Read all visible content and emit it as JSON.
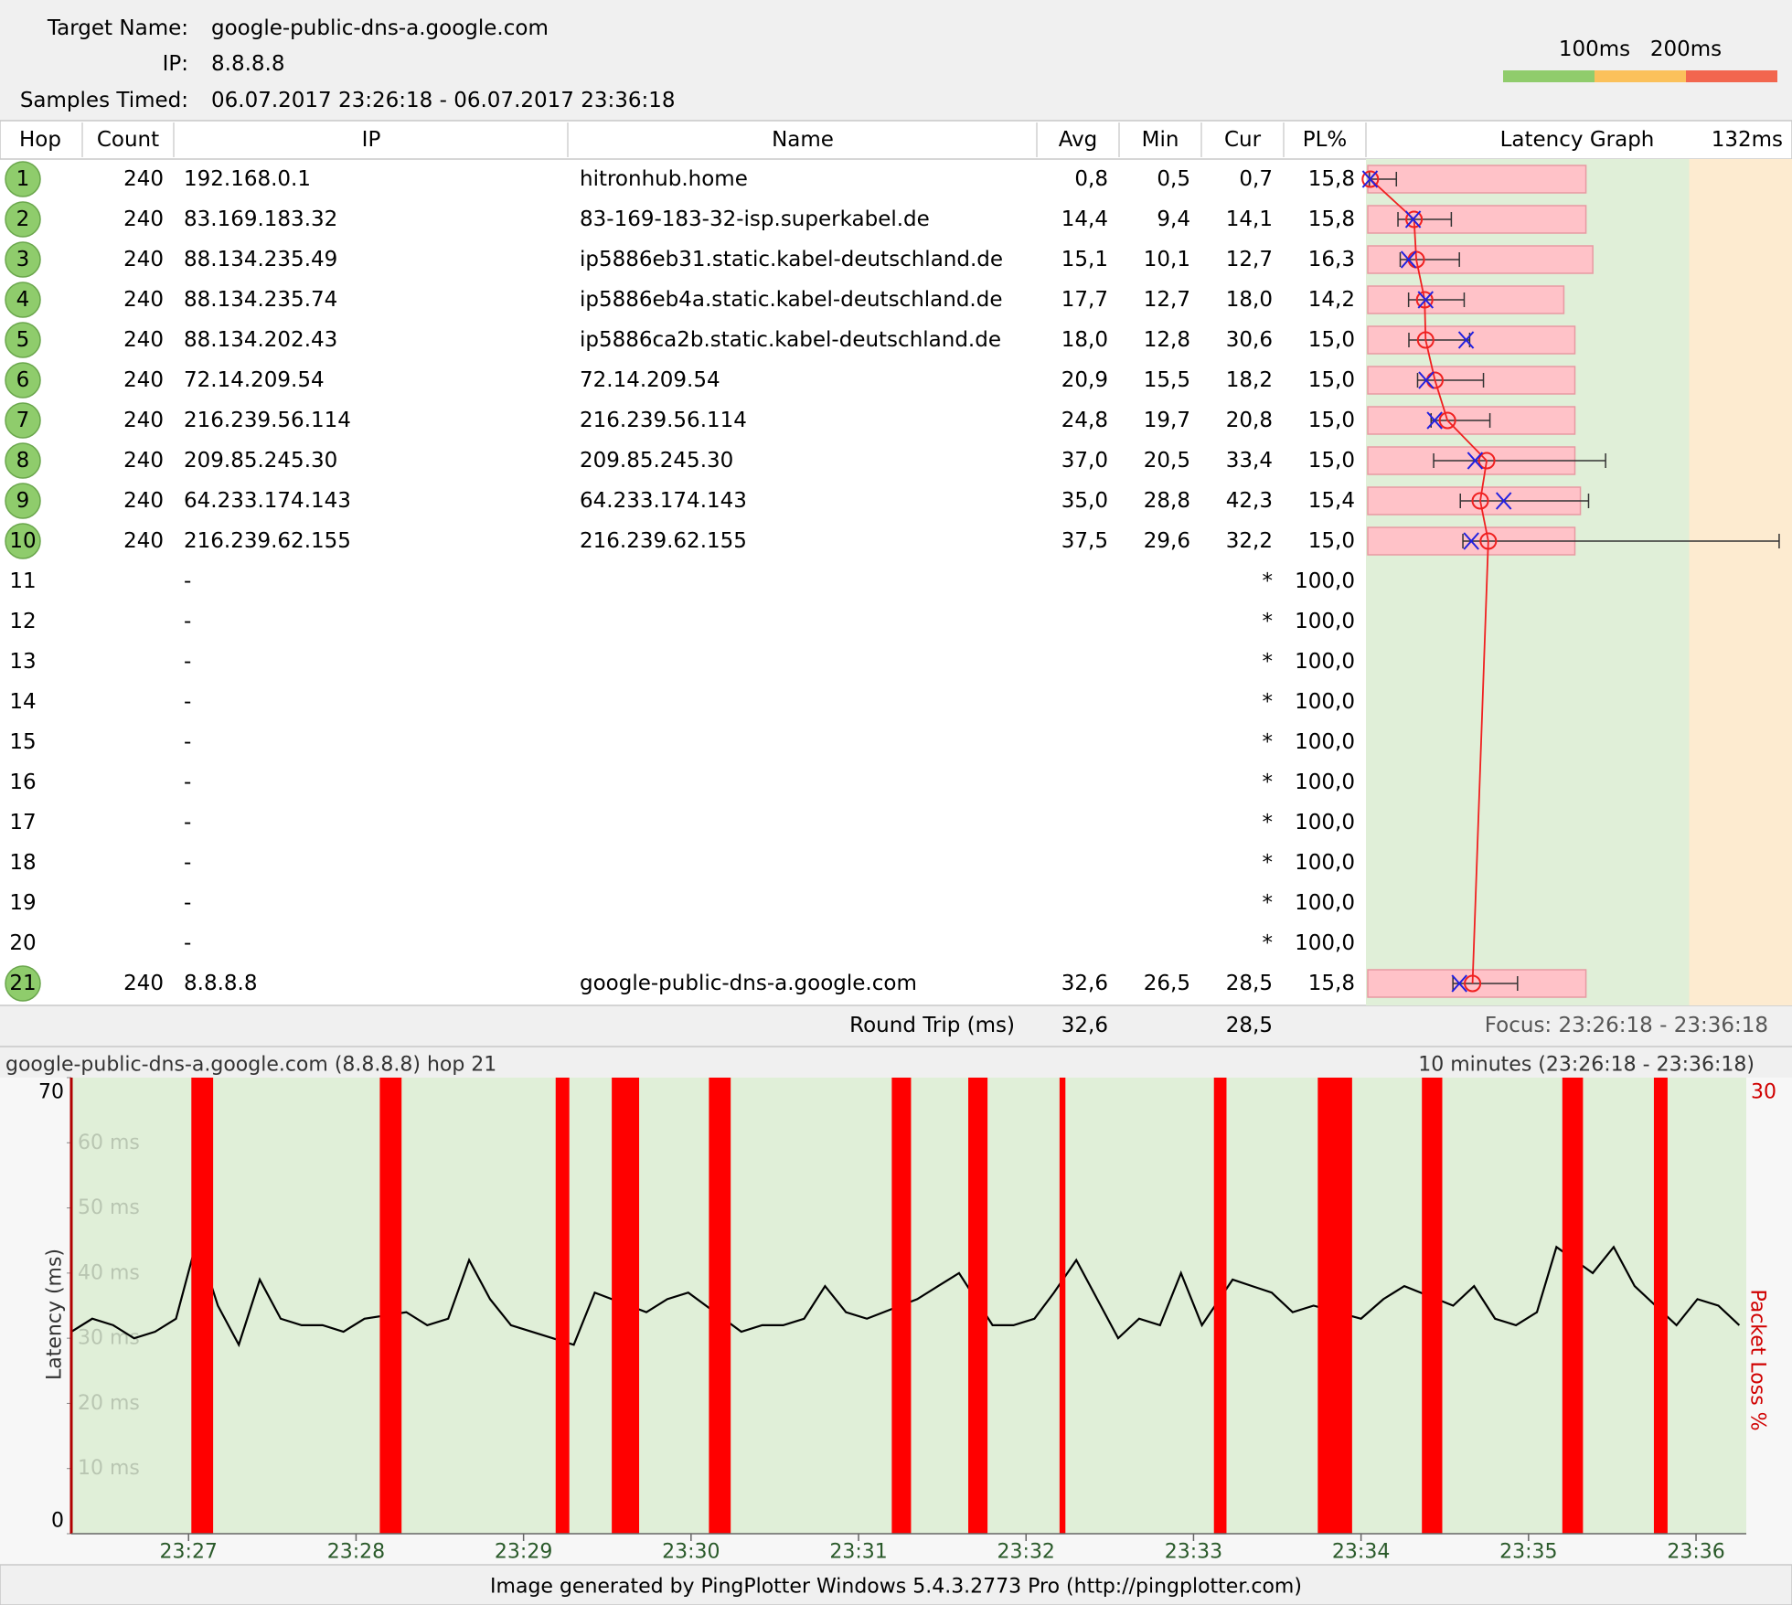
{
  "header": {
    "target_label": "Target Name:",
    "target": "google-public-dns-a.google.com",
    "ip_label": "IP:",
    "ip": "8.8.8.8",
    "samples_label": "Samples Timed:",
    "samples": "06.07.2017 23:26:18 - 06.07.2017 23:36:18"
  },
  "thresholds": [
    {
      "value": 100,
      "label": "100ms"
    },
    {
      "value": 200,
      "label": "200ms"
    }
  ],
  "threshold_colors": [
    "#90cc6c",
    "#fbc15b",
    "#f2664f"
  ],
  "table": {
    "columns": [
      "Hop",
      "Count",
      "IP",
      "Name",
      "Avg",
      "Min",
      "Cur",
      "PL%"
    ],
    "rows": [
      {
        "hop": 1,
        "count": 240,
        "ip": "192.168.0.1",
        "name": "hitronhub.home",
        "avg": "0,8",
        "min": "0,5",
        "cur": "0,7",
        "pl": "15,8"
      },
      {
        "hop": 2,
        "count": 240,
        "ip": "83.169.183.32",
        "name": "83-169-183-32-isp.superkabel.de",
        "avg": "14,4",
        "min": "9,4",
        "cur": "14,1",
        "pl": "15,8"
      },
      {
        "hop": 3,
        "count": 240,
        "ip": "88.134.235.49",
        "name": "ip5886eb31.static.kabel-deutschland.de",
        "avg": "15,1",
        "min": "10,1",
        "cur": "12,7",
        "pl": "16,3"
      },
      {
        "hop": 4,
        "count": 240,
        "ip": "88.134.235.74",
        "name": "ip5886eb4a.static.kabel-deutschland.de",
        "avg": "17,7",
        "min": "12,7",
        "cur": "18,0",
        "pl": "14,2"
      },
      {
        "hop": 5,
        "count": 240,
        "ip": "88.134.202.43",
        "name": "ip5886ca2b.static.kabel-deutschland.de",
        "avg": "18,0",
        "min": "12,8",
        "cur": "30,6",
        "pl": "15,0"
      },
      {
        "hop": 6,
        "count": 240,
        "ip": "72.14.209.54",
        "name": "72.14.209.54",
        "avg": "20,9",
        "min": "15,5",
        "cur": "18,2",
        "pl": "15,0"
      },
      {
        "hop": 7,
        "count": 240,
        "ip": "216.239.56.114",
        "name": "216.239.56.114",
        "avg": "24,8",
        "min": "19,7",
        "cur": "20,8",
        "pl": "15,0"
      },
      {
        "hop": 8,
        "count": 240,
        "ip": "209.85.245.30",
        "name": "209.85.245.30",
        "avg": "37,0",
        "min": "20,5",
        "cur": "33,4",
        "pl": "15,0"
      },
      {
        "hop": 9,
        "count": 240,
        "ip": "64.233.174.143",
        "name": "64.233.174.143",
        "avg": "35,0",
        "min": "28,8",
        "cur": "42,3",
        "pl": "15,4"
      },
      {
        "hop": 10,
        "count": 240,
        "ip": "216.239.62.155",
        "name": "216.239.62.155",
        "avg": "37,5",
        "min": "29,6",
        "cur": "32,2",
        "pl": "15,0"
      },
      {
        "hop": 11,
        "ip": "-",
        "cur": "*",
        "pl": "100,0"
      },
      {
        "hop": 12,
        "ip": "-",
        "cur": "*",
        "pl": "100,0"
      },
      {
        "hop": 13,
        "ip": "-",
        "cur": "*",
        "pl": "100,0"
      },
      {
        "hop": 14,
        "ip": "-",
        "cur": "*",
        "pl": "100,0"
      },
      {
        "hop": 15,
        "ip": "-",
        "cur": "*",
        "pl": "100,0"
      },
      {
        "hop": 16,
        "ip": "-",
        "cur": "*",
        "pl": "100,0"
      },
      {
        "hop": 17,
        "ip": "-",
        "cur": "*",
        "pl": "100,0"
      },
      {
        "hop": 18,
        "ip": "-",
        "cur": "*",
        "pl": "100,0"
      },
      {
        "hop": 19,
        "ip": "-",
        "cur": "*",
        "pl": "100,0"
      },
      {
        "hop": 20,
        "ip": "-",
        "cur": "*",
        "pl": "100,0"
      },
      {
        "hop": 21,
        "count": 240,
        "ip": "8.8.8.8",
        "name": "google-public-dns-a.google.com",
        "avg": "32,6",
        "min": "26,5",
        "cur": "28,5",
        "pl": "15,8"
      }
    ]
  },
  "latency_graph": {
    "title": "Latency Graph",
    "scale_label": "132ms",
    "xlim": [
      0,
      132
    ],
    "max": [
      8.9,
      26,
      28.5,
      30,
      31.7,
      36,
      38,
      74,
      68.7,
      128,
      null,
      null,
      null,
      null,
      null,
      null,
      null,
      null,
      null,
      null,
      46.6
    ]
  },
  "round_trip": {
    "label": "Round Trip (ms)",
    "avg": "32,6",
    "cur": "28,5"
  },
  "focus": "Focus: 23:26:18 - 23:36:18",
  "chart_data": {
    "type": "line",
    "title": "google-public-dns-a.google.com (8.8.8.8) hop 21",
    "subtitle": "10 minutes (23:26:18 - 23:36:18)",
    "ylabel": "Latency (ms)",
    "y2label": "Packet Loss %",
    "xlim": [
      0,
      600
    ],
    "xticks": [
      {
        "value": 42,
        "label": "23:27"
      },
      {
        "value": 102,
        "label": "23:28"
      },
      {
        "value": 162,
        "label": "23:29"
      },
      {
        "value": 222,
        "label": "23:30"
      },
      {
        "value": 282,
        "label": "23:31"
      },
      {
        "value": 342,
        "label": "23:32"
      },
      {
        "value": 402,
        "label": "23:33"
      },
      {
        "value": 462,
        "label": "23:34"
      },
      {
        "value": 522,
        "label": "23:35"
      },
      {
        "value": 582,
        "label": "23:36"
      }
    ],
    "ylim": [
      0,
      70
    ],
    "yticks": [
      0,
      {
        "value": 10,
        "label": "10 ms"
      },
      {
        "value": 20,
        "label": "20 ms"
      },
      {
        "value": 30,
        "label": "30 ms"
      },
      {
        "value": 40,
        "label": "40 ms"
      },
      {
        "value": 50,
        "label": "50 ms"
      },
      {
        "value": 60,
        "label": "60 ms"
      },
      70
    ],
    "y2lim": [
      0,
      30
    ],
    "y2ticks": [
      30
    ],
    "color": "#000000",
    "x": [
      0,
      7.5,
      15,
      22.5,
      30,
      37.5,
      45,
      52.5,
      60,
      67.5,
      75,
      82.5,
      90,
      97.5,
      105,
      120,
      127.5,
      135,
      142.5,
      150,
      157.5,
      165,
      172.5,
      180,
      187.5,
      206,
      213.5,
      221,
      240,
      247.5,
      255,
      262.5,
      270,
      277.5,
      285,
      303,
      310.5,
      318,
      330,
      337.5,
      345,
      352,
      360,
      367.5,
      375,
      382.5,
      390,
      397.5,
      405,
      416,
      423,
      430,
      437.5,
      445,
      462,
      470,
      477.5,
      495,
      502.5,
      510,
      517.5,
      525,
      532,
      545,
      552.5,
      560,
      575,
      582.5,
      590,
      597.5
    ],
    "values": [
      31,
      33,
      32,
      30,
      31,
      33,
      45,
      35,
      29,
      39,
      33,
      32,
      32,
      31,
      33,
      34,
      32,
      33,
      42,
      36,
      32,
      31,
      30,
      29,
      37,
      34,
      36,
      37,
      31,
      32,
      32,
      33,
      38,
      34,
      33,
      36,
      38,
      40,
      32,
      32,
      33,
      37,
      42,
      36,
      30,
      33,
      32,
      40,
      32,
      39,
      38,
      37,
      34,
      35,
      33,
      36,
      38,
      35,
      38,
      33,
      32,
      34,
      44,
      40,
      44,
      38,
      32,
      36,
      35,
      32
    ],
    "loss": {
      "color": "#ff0000",
      "x_start": [
        43,
        110.5,
        173.5,
        193.6,
        228.4,
        293.9,
        321.3,
        354,
        409.3,
        446.5,
        483.8,
        534.1,
        566.9
      ],
      "x_end": [
        50.8,
        118.3,
        178.4,
        203.4,
        236.2,
        300.8,
        328.2,
        356.1,
        413.8,
        458.8,
        491.1,
        541.5,
        571.8
      ],
      "values": [
        30,
        30,
        30,
        30,
        30,
        30,
        30,
        30,
        30,
        30,
        30,
        30,
        30
      ]
    }
  },
  "footer": "Image generated by PingPlotter Windows 5.4.3.2773 Pro (http://pingplotter.com)"
}
